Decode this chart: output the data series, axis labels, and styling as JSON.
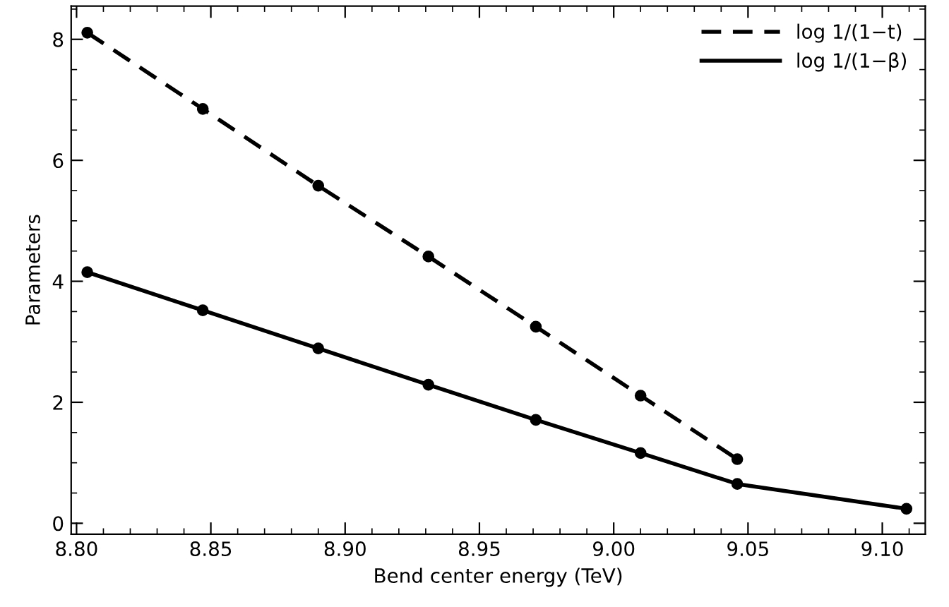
{
  "chart_data": {
    "type": "line",
    "xlabel": "Bend center energy (TeV)",
    "ylabel": "Parameters",
    "xlim": [
      8.798,
      9.116
    ],
    "xticks": [
      {
        "value": 8.8,
        "label": "8.80"
      },
      {
        "value": 8.85,
        "label": "8.85"
      },
      {
        "value": 8.9,
        "label": "8.90"
      },
      {
        "value": 8.95,
        "label": "8.95"
      },
      {
        "value": 9.0,
        "label": "9.00"
      },
      {
        "value": 9.05,
        "label": "9.05"
      },
      {
        "value": 9.1,
        "label": "9.10"
      }
    ],
    "ylim": [
      -0.18,
      8.55
    ],
    "yticks": [
      0,
      2,
      4,
      6,
      8
    ],
    "grid": false,
    "legend": "top right",
    "marker": "circle",
    "series": [
      {
        "name": "log 1/(1−t)",
        "color": "#000000",
        "line_style": "dashed",
        "x": [
          8.804,
          8.847,
          8.89,
          8.931,
          8.971,
          9.01,
          9.046
        ],
        "values": [
          8.11,
          6.85,
          5.58,
          4.41,
          3.25,
          2.11,
          1.06
        ]
      },
      {
        "name": "log 1/(1−β)",
        "color": "#000000",
        "line_style": "solid",
        "x": [
          8.804,
          8.847,
          8.89,
          8.931,
          8.971,
          9.01,
          9.046,
          9.109
        ],
        "values": [
          4.15,
          3.52,
          2.89,
          2.29,
          1.71,
          1.16,
          0.65,
          0.24
        ]
      }
    ]
  }
}
